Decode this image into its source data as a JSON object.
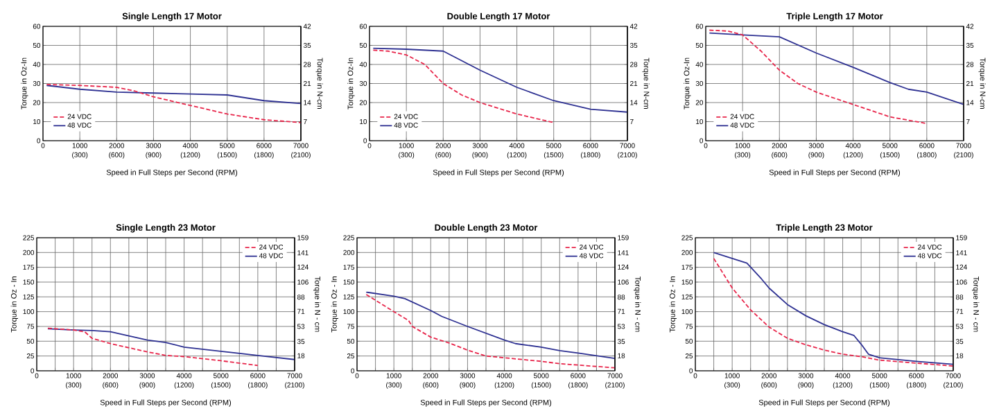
{
  "chart_data": [
    {
      "type": "line",
      "title": "Single Length 17 Motor",
      "xlabel": "Speed in Full Steps per Second (RPM)",
      "ylabel": "Torque in Oz-In",
      "y2label": "Torque in N-cm",
      "xlim": [
        0,
        7000
      ],
      "xticks": [
        0,
        1000,
        2000,
        3000,
        4000,
        5000,
        6000,
        7000
      ],
      "x2lim": [
        0,
        2100
      ],
      "x2ticks": [
        {
          "value": 300,
          "label": "(300)"
        },
        {
          "value": 600,
          "label": "(600)"
        },
        {
          "value": 900,
          "label": "(900)"
        },
        {
          "value": 1200,
          "label": "(1200)"
        },
        {
          "value": 1500,
          "label": "(1500)"
        },
        {
          "value": 1800,
          "label": "(1800)"
        },
        {
          "value": 2100,
          "label": "(2100)"
        }
      ],
      "ylim": [
        0,
        60
      ],
      "yticks": [
        0,
        10,
        20,
        30,
        40,
        50,
        60
      ],
      "y2lim": [
        0,
        42
      ],
      "y2ticks": [
        7,
        14,
        21,
        28,
        35,
        42
      ],
      "grid": true,
      "legend": "bottom left",
      "marker": "none",
      "series": [
        {
          "name": "24 VDC",
          "color": "#e8254a",
          "line_style": "dashed",
          "x": [
            100,
            1000,
            2000,
            2500,
            3000,
            4000,
            5000,
            6000,
            7000
          ],
          "values": [
            29.5,
            29,
            28,
            26,
            23,
            18.5,
            14,
            11,
            9.5
          ]
        },
        {
          "name": "48 VDC",
          "color": "#2e3192",
          "line_style": "solid",
          "x": [
            100,
            1000,
            2000,
            3000,
            4000,
            5000,
            5500,
            6000,
            7000
          ],
          "values": [
            29,
            27,
            25.5,
            25,
            24.5,
            24,
            22.5,
            21,
            19.5
          ]
        }
      ]
    },
    {
      "type": "line",
      "title": "Double Length 17 Motor",
      "xlabel": "Speed in Full Steps per Second (RPM)",
      "ylabel": "Torque in Oz-In",
      "y2label": "Torque in N-cm",
      "xlim": [
        0,
        7000
      ],
      "xticks": [
        0,
        1000,
        2000,
        3000,
        4000,
        5000,
        6000,
        7000
      ],
      "x2lim": [
        0,
        2100
      ],
      "x2ticks": [
        {
          "value": 300,
          "label": "(300)"
        },
        {
          "value": 600,
          "label": "(600)"
        },
        {
          "value": 900,
          "label": "(900)"
        },
        {
          "value": 1200,
          "label": "(1200)"
        },
        {
          "value": 1500,
          "label": "(1500)"
        },
        {
          "value": 1800,
          "label": "(1800)"
        },
        {
          "value": 2100,
          "label": "(2100)"
        }
      ],
      "ylim": [
        0,
        60
      ],
      "yticks": [
        0,
        10,
        20,
        30,
        40,
        50,
        60
      ],
      "y2lim": [
        0,
        42
      ],
      "y2ticks": [
        7,
        14,
        21,
        28,
        35,
        42
      ],
      "grid": true,
      "legend": "bottom left",
      "marker": "none",
      "series": [
        {
          "name": "24 VDC",
          "color": "#e8254a",
          "line_style": "dashed",
          "x": [
            100,
            500,
            1000,
            1500,
            2000,
            2500,
            3000,
            4000,
            5000
          ],
          "values": [
            47.5,
            47,
            45,
            40,
            30,
            24,
            20,
            14,
            9.5
          ]
        },
        {
          "name": "48 VDC",
          "color": "#2e3192",
          "line_style": "solid",
          "x": [
            100,
            1000,
            2000,
            3000,
            4000,
            5000,
            6000,
            7000
          ],
          "values": [
            48.5,
            48,
            47,
            37,
            28,
            21,
            16.5,
            15
          ]
        }
      ]
    },
    {
      "type": "line",
      "title": "Triple Length 17 Motor",
      "xlabel": "Speed in Full Steps per Second (RPM)",
      "ylabel": "Torque in Oz-In",
      "y2label": "Torque in N-cm",
      "xlim": [
        0,
        7000
      ],
      "xticks": [
        0,
        1000,
        2000,
        3000,
        4000,
        5000,
        6000,
        7000
      ],
      "x2lim": [
        0,
        2100
      ],
      "x2ticks": [
        {
          "value": 300,
          "label": "(300)"
        },
        {
          "value": 600,
          "label": "(600)"
        },
        {
          "value": 900,
          "label": "(900)"
        },
        {
          "value": 1200,
          "label": "(1200)"
        },
        {
          "value": 1500,
          "label": "(1500)"
        },
        {
          "value": 1800,
          "label": "(1800)"
        },
        {
          "value": 2100,
          "label": "(2100)"
        }
      ],
      "ylim": [
        0,
        60
      ],
      "yticks": [
        0,
        10,
        20,
        30,
        40,
        50,
        60
      ],
      "y2lim": [
        0,
        42
      ],
      "y2ticks": [
        7,
        14,
        21,
        28,
        35,
        42
      ],
      "grid": true,
      "legend": "bottom left",
      "marker": "none",
      "series": [
        {
          "name": "24 VDC",
          "color": "#e8254a",
          "line_style": "dashed",
          "x": [
            100,
            600,
            1000,
            1500,
            2000,
            2500,
            3000,
            4000,
            5000,
            6000
          ],
          "values": [
            58,
            57.5,
            55.5,
            47,
            37,
            30,
            25.5,
            19,
            12.5,
            9
          ]
        },
        {
          "name": "48 VDC",
          "color": "#2e3192",
          "line_style": "solid",
          "x": [
            100,
            1000,
            2000,
            3000,
            4000,
            5000,
            5500,
            6000,
            7000
          ],
          "values": [
            56.5,
            55.5,
            54.5,
            46,
            38.5,
            30.5,
            27,
            25.5,
            19
          ]
        }
      ]
    },
    {
      "type": "line",
      "title": "Single Length 23 Motor",
      "xlabel": "Speed in Full Steps per Second (RPM)",
      "ylabel": "Torque in Oz - In",
      "y2label": "Torque in N - cm",
      "xlim": [
        0,
        7000
      ],
      "xticks": [
        0,
        {
          "value": 500,
          "label": null
        },
        1000,
        {
          "value": 1500,
          "label": null
        },
        2000,
        {
          "value": 2500,
          "label": null
        },
        3000,
        {
          "value": 3500,
          "label": null
        },
        4000,
        {
          "value": 4500,
          "label": null
        },
        5000,
        {
          "value": 5500,
          "label": null
        },
        6000,
        {
          "value": 6500,
          "label": null
        },
        7000
      ],
      "x2lim": [
        0,
        2100
      ],
      "x2ticks": [
        {
          "value": 300,
          "label": "(300)"
        },
        {
          "value": 600,
          "label": "(600)"
        },
        {
          "value": 900,
          "label": "(900)"
        },
        {
          "value": 1200,
          "label": "(1200)"
        },
        {
          "value": 1500,
          "label": "(1500)"
        },
        {
          "value": 1800,
          "label": "(1800)"
        },
        {
          "value": 2100,
          "label": "(2100)"
        }
      ],
      "ylim": [
        0,
        225
      ],
      "yticks": [
        0,
        25,
        50,
        75,
        100,
        125,
        150,
        175,
        200,
        225
      ],
      "y2lim": [
        0,
        159
      ],
      "y2ticks": [
        18,
        35,
        53,
        71,
        88,
        106,
        124,
        141,
        159
      ],
      "grid": true,
      "legend": "top right",
      "marker": "none",
      "series": [
        {
          "name": "24 VDC",
          "color": "#e8254a",
          "line_style": "dashed",
          "x": [
            300,
            1000,
            1300,
            1500,
            2000,
            3000,
            3500,
            4000,
            5000,
            6000
          ],
          "values": [
            72,
            69,
            66,
            55,
            46,
            32,
            26,
            24,
            17,
            9
          ]
        },
        {
          "name": "48 VDC",
          "color": "#2e3192",
          "line_style": "solid",
          "x": [
            300,
            1000,
            1500,
            2000,
            3000,
            3500,
            4000,
            5000,
            6000,
            7000
          ],
          "values": [
            71,
            69,
            68,
            66,
            52,
            48,
            40,
            33,
            26,
            19
          ]
        }
      ]
    },
    {
      "type": "line",
      "title": "Double Length 23 Motor",
      "xlabel": "Speed in Full Steps per Second (RPM)",
      "ylabel": "Torque in Oz - In",
      "y2label": "Torque in N - cm",
      "xlim": [
        0,
        7000
      ],
      "xticks": [
        0,
        {
          "value": 500,
          "label": null
        },
        1000,
        {
          "value": 1500,
          "label": null
        },
        2000,
        {
          "value": 2500,
          "label": null
        },
        3000,
        {
          "value": 3500,
          "label": null
        },
        4000,
        {
          "value": 4500,
          "label": null
        },
        5000,
        {
          "value": 5500,
          "label": null
        },
        6000,
        {
          "value": 6500,
          "label": null
        },
        7000
      ],
      "x2lim": [
        0,
        2100
      ],
      "x2ticks": [
        {
          "value": 300,
          "label": "(300)"
        },
        {
          "value": 600,
          "label": "(600)"
        },
        {
          "value": 900,
          "label": "(900)"
        },
        {
          "value": 1200,
          "label": "(1200)"
        },
        {
          "value": 1500,
          "label": "(1500)"
        },
        {
          "value": 1800,
          "label": "(1800)"
        },
        {
          "value": 2100,
          "label": "(2100)"
        }
      ],
      "ylim": [
        0,
        225
      ],
      "yticks": [
        0,
        25,
        50,
        75,
        100,
        125,
        150,
        175,
        200,
        225
      ],
      "y2lim": [
        0,
        159
      ],
      "y2ticks": [
        18,
        35,
        53,
        71,
        88,
        106,
        124,
        141,
        159
      ],
      "grid": true,
      "legend": "top right",
      "marker": "none",
      "series": [
        {
          "name": "24 VDC",
          "color": "#e8254a",
          "line_style": "dashed",
          "x": [
            250,
            1000,
            1400,
            1500,
            2000,
            2500,
            3000,
            3500,
            4000,
            5000,
            5500,
            7000
          ],
          "values": [
            129,
            100,
            85,
            75,
            57,
            47,
            35,
            25,
            22,
            16,
            12,
            5
          ]
        },
        {
          "name": "48 VDC",
          "color": "#2e3192",
          "line_style": "solid",
          "x": [
            250,
            1000,
            1300,
            2000,
            2300,
            3000,
            4000,
            4300,
            5000,
            5500,
            6000,
            7000
          ],
          "values": [
            133,
            126,
            122,
            102,
            92,
            75,
            52,
            46,
            40,
            34,
            30,
            21
          ]
        }
      ]
    },
    {
      "type": "line",
      "title": "Triple Length 23 Motor",
      "xlabel": "Speed in Full Steps per Second (RPM)",
      "ylabel": "Torque in Oz - In",
      "y2label": "Torque in N - cm",
      "xlim": [
        0,
        7000
      ],
      "xticks": [
        0,
        {
          "value": 500,
          "label": null
        },
        1000,
        {
          "value": 1500,
          "label": null
        },
        2000,
        {
          "value": 2500,
          "label": null
        },
        3000,
        {
          "value": 3500,
          "label": null
        },
        4000,
        {
          "value": 4500,
          "label": null
        },
        5000,
        {
          "value": 5500,
          "label": null
        },
        6000,
        {
          "value": 6500,
          "label": null
        },
        7000
      ],
      "x2lim": [
        0,
        2100
      ],
      "x2ticks": [
        {
          "value": 300,
          "label": "(300)"
        },
        {
          "value": 600,
          "label": "(600)"
        },
        {
          "value": 900,
          "label": "(900)"
        },
        {
          "value": 1200,
          "label": "(1200)"
        },
        {
          "value": 1500,
          "label": "(1500)"
        },
        {
          "value": 1800,
          "label": "(1800)"
        },
        {
          "value": 2100,
          "label": "(2100)"
        }
      ],
      "ylim": [
        0,
        225
      ],
      "yticks": [
        0,
        25,
        50,
        75,
        100,
        125,
        150,
        175,
        200,
        225
      ],
      "y2lim": [
        0,
        159
      ],
      "y2ticks": [
        18,
        35,
        53,
        71,
        88,
        106,
        124,
        141,
        159
      ],
      "grid": true,
      "legend": "top right",
      "marker": "none",
      "series": [
        {
          "name": "24 VDC",
          "color": "#e8254a",
          "line_style": "dashed",
          "x": [
            500,
            1000,
            1500,
            2000,
            2500,
            3000,
            3500,
            4000,
            4500,
            5000,
            6000,
            7000
          ],
          "values": [
            190,
            140,
            103,
            74,
            55,
            44,
            35,
            28,
            24,
            18,
            13,
            8
          ]
        },
        {
          "name": "48 VDC",
          "color": "#2e3192",
          "line_style": "solid",
          "x": [
            500,
            1000,
            1400,
            1800,
            2000,
            2500,
            3000,
            3500,
            4000,
            4300,
            4500,
            4700,
            5000,
            6000,
            7000
          ],
          "values": [
            200,
            190,
            182,
            155,
            140,
            112,
            93,
            78,
            66,
            60,
            45,
            28,
            22,
            16,
            11
          ]
        }
      ]
    }
  ]
}
